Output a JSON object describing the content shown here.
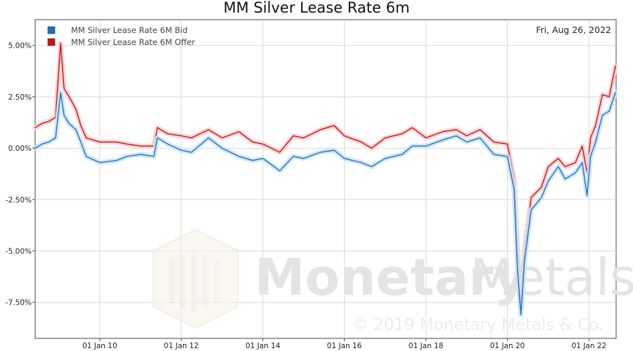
{
  "chart_data": {
    "type": "line",
    "title": "MM Silver Lease Rate 6m",
    "date_label": "Fri, Aug 26, 2022",
    "legend_position": "top-left",
    "grid": true,
    "x_range": [
      "2008-06-01",
      "2022-09-01"
    ],
    "ylim": [
      -9.25,
      6.25
    ],
    "y_ticks": [
      {
        "value": 5.0,
        "label": "5.00%"
      },
      {
        "value": 2.5,
        "label": "2.50%"
      },
      {
        "value": 0.0,
        "label": "0.00%"
      },
      {
        "value": -2.5,
        "label": "-2.50%"
      },
      {
        "value": -5.0,
        "label": "-5.00%"
      },
      {
        "value": -7.5,
        "label": "-7.50%"
      }
    ],
    "x_ticks": [
      {
        "date": "2010-01-01",
        "label": "01 Jan 10"
      },
      {
        "date": "2012-01-01",
        "label": "01 Jan 12"
      },
      {
        "date": "2014-01-01",
        "label": "01 Jan 14"
      },
      {
        "date": "2016-01-01",
        "label": "01 Jan 16"
      },
      {
        "date": "2018-01-01",
        "label": "01 Jan 18"
      },
      {
        "date": "2020-01-01",
        "label": "01 Jan 20"
      },
      {
        "date": "2022-01-01",
        "label": "01 Jan 22"
      }
    ],
    "series": [
      {
        "name": "MM Silver Lease Rate 6M Bid",
        "color": "#1a73c0",
        "points": [
          [
            "2008-06-01",
            0.0
          ],
          [
            "2008-08-01",
            0.2
          ],
          [
            "2008-10-01",
            0.3
          ],
          [
            "2008-12-01",
            0.5
          ],
          [
            "2009-01-15",
            2.7
          ],
          [
            "2009-02-15",
            1.6
          ],
          [
            "2009-04-01",
            1.2
          ],
          [
            "2009-06-01",
            0.9
          ],
          [
            "2009-07-15",
            0.3
          ],
          [
            "2009-09-01",
            -0.4
          ],
          [
            "2010-01-01",
            -0.7
          ],
          [
            "2010-06-01",
            -0.6
          ],
          [
            "2010-09-01",
            -0.4
          ],
          [
            "2011-01-01",
            -0.3
          ],
          [
            "2011-05-01",
            -0.4
          ],
          [
            "2011-06-01",
            0.5
          ],
          [
            "2011-09-01",
            0.2
          ],
          [
            "2012-01-01",
            -0.1
          ],
          [
            "2012-04-01",
            -0.2
          ],
          [
            "2012-09-01",
            0.5
          ],
          [
            "2013-01-01",
            0.0
          ],
          [
            "2013-06-01",
            -0.4
          ],
          [
            "2013-10-01",
            -0.6
          ],
          [
            "2014-01-01",
            -0.5
          ],
          [
            "2014-06-01",
            -1.1
          ],
          [
            "2014-10-01",
            -0.4
          ],
          [
            "2015-01-01",
            -0.5
          ],
          [
            "2015-06-01",
            -0.2
          ],
          [
            "2015-10-01",
            -0.1
          ],
          [
            "2016-01-01",
            -0.5
          ],
          [
            "2016-06-01",
            -0.7
          ],
          [
            "2016-09-01",
            -0.9
          ],
          [
            "2017-01-01",
            -0.5
          ],
          [
            "2017-06-01",
            -0.3
          ],
          [
            "2017-09-01",
            0.1
          ],
          [
            "2018-01-01",
            0.1
          ],
          [
            "2018-06-01",
            0.4
          ],
          [
            "2018-10-01",
            0.6
          ],
          [
            "2019-01-01",
            0.3
          ],
          [
            "2019-05-01",
            0.5
          ],
          [
            "2019-09-01",
            -0.3
          ],
          [
            "2020-01-01",
            -0.4
          ],
          [
            "2020-03-01",
            -2.0
          ],
          [
            "2020-04-01",
            -6.0
          ],
          [
            "2020-05-01",
            -8.1
          ],
          [
            "2020-06-01",
            -5.5
          ],
          [
            "2020-08-01",
            -3.0
          ],
          [
            "2020-11-01",
            -2.4
          ],
          [
            "2021-01-01",
            -1.6
          ],
          [
            "2021-04-01",
            -0.9
          ],
          [
            "2021-06-01",
            -1.5
          ],
          [
            "2021-09-01",
            -1.2
          ],
          [
            "2021-11-01",
            -0.7
          ],
          [
            "2021-12-15",
            -2.3
          ],
          [
            "2022-01-15",
            -0.4
          ],
          [
            "2022-03-01",
            0.3
          ],
          [
            "2022-05-01",
            1.6
          ],
          [
            "2022-07-01",
            1.8
          ],
          [
            "2022-08-26",
            2.7
          ]
        ]
      },
      {
        "name": "MM Silver Lease Rate 6M Offer",
        "color": "#cc1111",
        "points": [
          [
            "2008-06-01",
            1.0
          ],
          [
            "2008-08-01",
            1.2
          ],
          [
            "2008-10-01",
            1.3
          ],
          [
            "2008-12-01",
            1.5
          ],
          [
            "2009-01-15",
            5.1
          ],
          [
            "2009-02-15",
            2.9
          ],
          [
            "2009-04-01",
            2.5
          ],
          [
            "2009-06-01",
            1.9
          ],
          [
            "2009-07-15",
            1.1
          ],
          [
            "2009-09-01",
            0.5
          ],
          [
            "2010-01-01",
            0.3
          ],
          [
            "2010-06-01",
            0.3
          ],
          [
            "2010-09-01",
            0.2
          ],
          [
            "2011-01-01",
            0.1
          ],
          [
            "2011-05-01",
            0.1
          ],
          [
            "2011-06-01",
            1.0
          ],
          [
            "2011-09-01",
            0.7
          ],
          [
            "2012-01-01",
            0.6
          ],
          [
            "2012-04-01",
            0.5
          ],
          [
            "2012-09-01",
            0.9
          ],
          [
            "2013-01-01",
            0.5
          ],
          [
            "2013-06-01",
            0.8
          ],
          [
            "2013-10-01",
            0.3
          ],
          [
            "2014-01-01",
            0.2
          ],
          [
            "2014-06-01",
            -0.2
          ],
          [
            "2014-10-01",
            0.6
          ],
          [
            "2015-01-01",
            0.5
          ],
          [
            "2015-06-01",
            0.9
          ],
          [
            "2015-10-01",
            1.1
          ],
          [
            "2016-01-01",
            0.6
          ],
          [
            "2016-06-01",
            0.3
          ],
          [
            "2016-09-01",
            0.0
          ],
          [
            "2017-01-01",
            0.5
          ],
          [
            "2017-06-01",
            0.7
          ],
          [
            "2017-09-01",
            1.0
          ],
          [
            "2018-01-01",
            0.5
          ],
          [
            "2018-06-01",
            0.8
          ],
          [
            "2018-10-01",
            0.9
          ],
          [
            "2019-01-01",
            0.6
          ],
          [
            "2019-05-01",
            0.9
          ],
          [
            "2019-09-01",
            0.3
          ],
          [
            "2020-01-01",
            0.2
          ],
          [
            "2020-03-01",
            -1.5
          ],
          [
            "2020-04-01",
            -5.0
          ],
          [
            "2020-05-01",
            -7.8
          ],
          [
            "2020-06-01",
            -5.0
          ],
          [
            "2020-08-01",
            -2.4
          ],
          [
            "2020-11-01",
            -1.9
          ],
          [
            "2021-01-01",
            -0.9
          ],
          [
            "2021-04-01",
            -0.5
          ],
          [
            "2021-06-01",
            -0.9
          ],
          [
            "2021-09-01",
            -0.7
          ],
          [
            "2021-11-01",
            0.1
          ],
          [
            "2021-12-15",
            -1.2
          ],
          [
            "2022-01-15",
            0.5
          ],
          [
            "2022-03-01",
            1.1
          ],
          [
            "2022-05-01",
            2.6
          ],
          [
            "2022-07-01",
            2.5
          ],
          [
            "2022-08-26",
            4.0
          ]
        ]
      }
    ]
  },
  "watermark": {
    "brand_left": "Monetary",
    "brand_right": "Metals",
    "registered": "®",
    "copyright": "© 2019 Monetary Metals & Co."
  }
}
